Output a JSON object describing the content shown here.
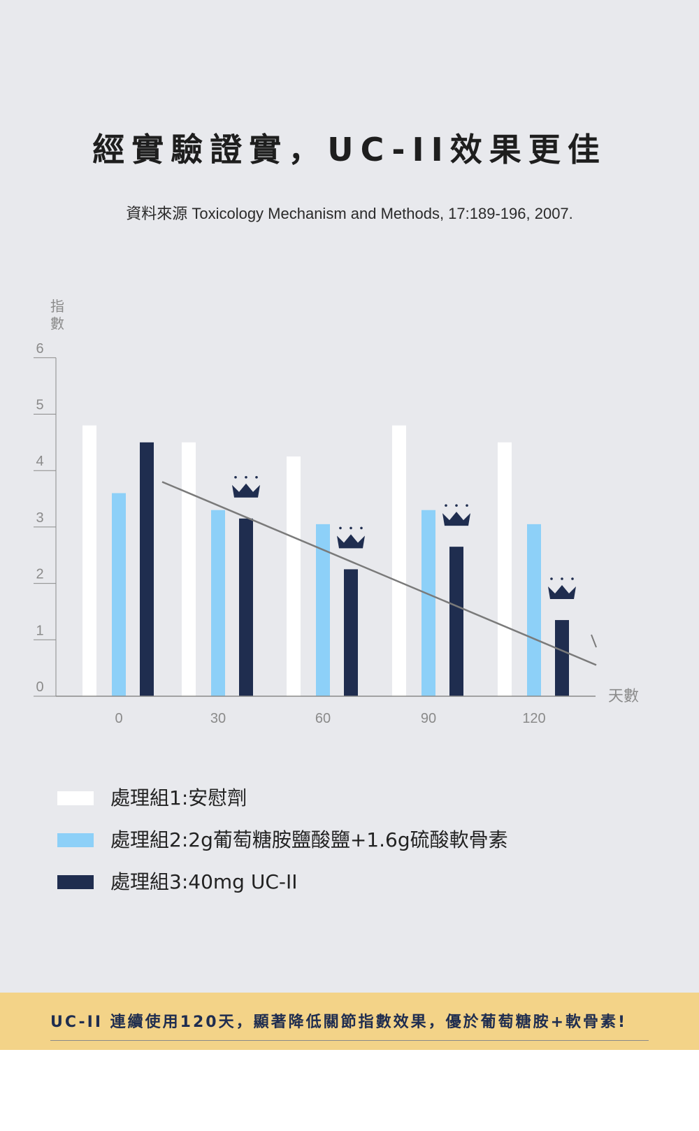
{
  "title": "經實驗證實，UC-II效果更佳",
  "source": "資料來源 Toxicology Mechanism and Methods, 17:189-196, 2007.",
  "colors": {
    "placebo": "#ffffff",
    "glucosamine": "#8dd0f8",
    "ucii": "#1f2d4f",
    "trend": "#7a7a7a",
    "axis": "#8a8a8a",
    "banner": "#f3d388"
  },
  "chart_data": {
    "type": "bar",
    "ylabel": "指數",
    "xlabel": "天數",
    "categories": [
      "0",
      "30",
      "60",
      "90",
      "120"
    ],
    "ylim": [
      0,
      6
    ],
    "yticks": [
      0,
      1,
      2,
      3,
      4,
      5,
      6
    ],
    "grid": false,
    "series": [
      {
        "name": "處理組1:安慰劑",
        "values": [
          4.8,
          4.5,
          4.25,
          4.8,
          4.5
        ]
      },
      {
        "name": "處理組2:2g葡萄糖胺鹽酸鹽+1.6g硫酸軟骨素",
        "values": [
          3.6,
          3.3,
          3.05,
          3.3,
          3.05
        ]
      },
      {
        "name": "處理組3:40mg UC-II",
        "values": [
          4.5,
          3.15,
          2.25,
          2.65,
          1.35
        ]
      }
    ],
    "trend_line": {
      "x": [
        "0",
        "120"
      ],
      "y": [
        3.8,
        0.9
      ]
    },
    "crown_markers": [
      "30",
      "60",
      "90",
      "120"
    ]
  },
  "banner": "UC-II 連續使用120天，顯著降低關節指數效果，優於葡萄糖胺+軟骨素!"
}
